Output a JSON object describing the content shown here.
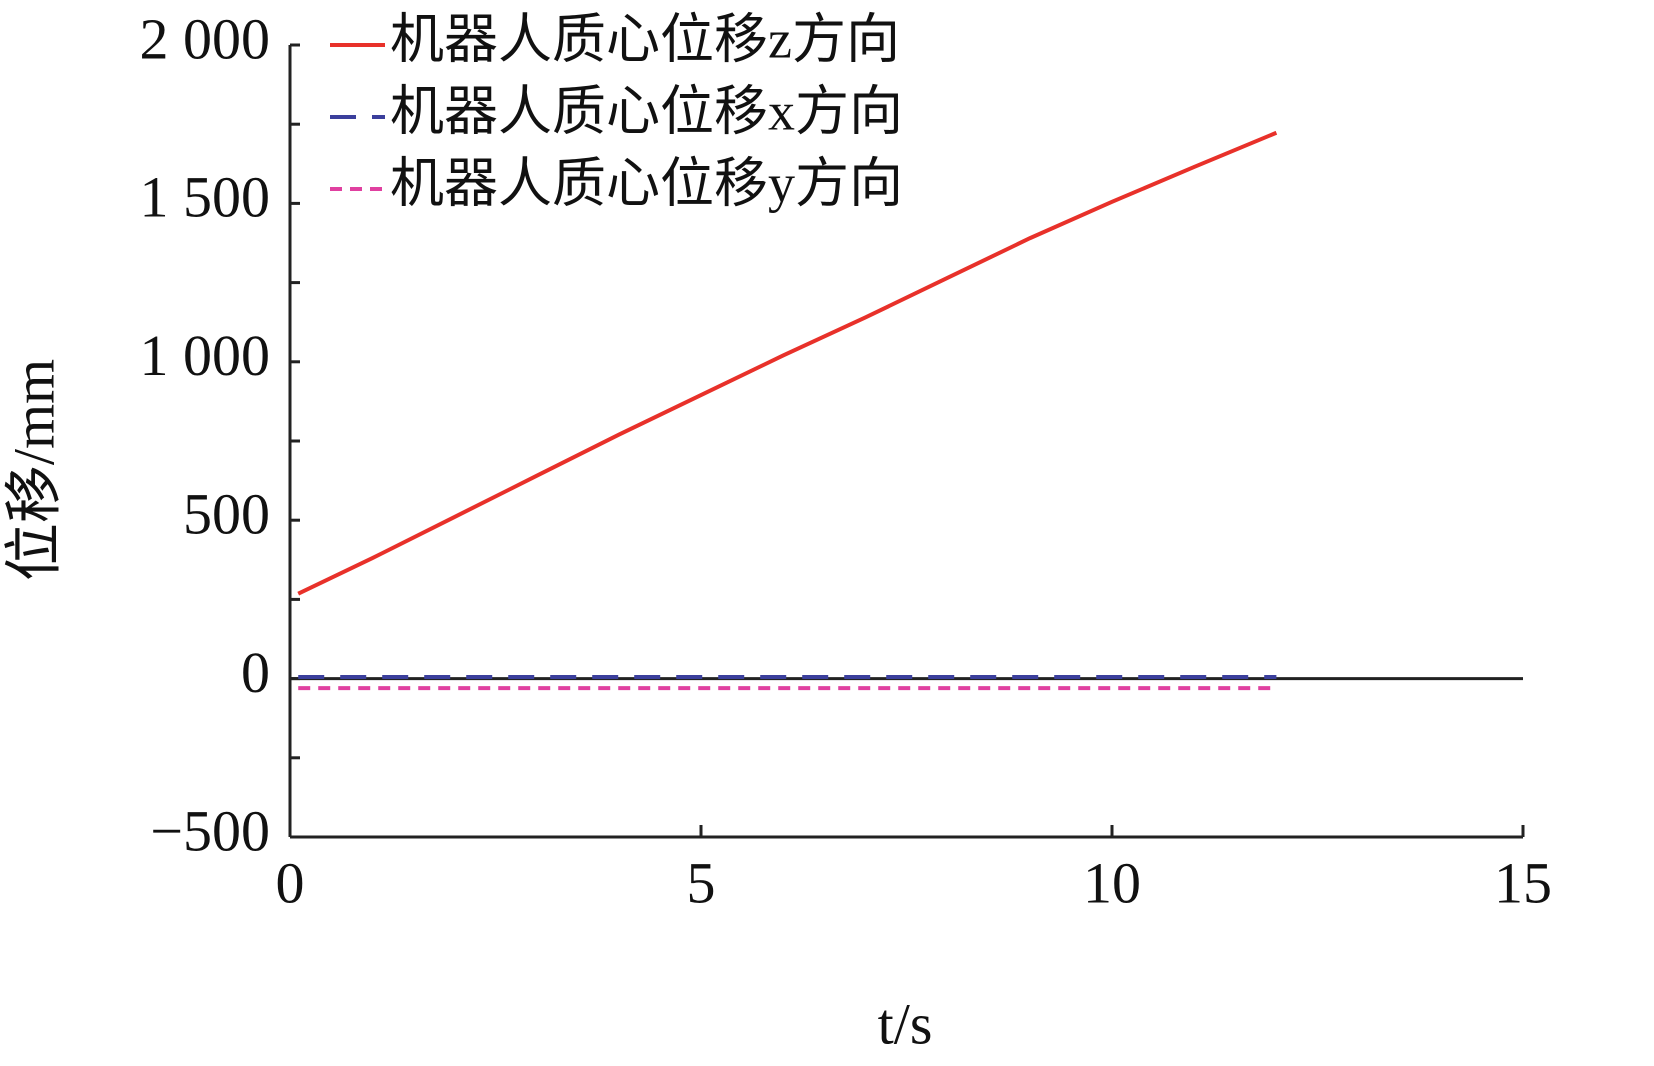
{
  "chart_data": {
    "type": "line",
    "xlabel": "t/s",
    "ylabel": "位移/mm",
    "x": [
      0.1,
      1,
      2,
      3,
      4,
      5,
      6,
      7,
      8,
      9,
      10,
      11,
      12
    ],
    "series": [
      {
        "name": "机器人质心位移z方向",
        "color": "#e8312a",
        "dash": "solid",
        "values": [
          268,
          380,
          510,
          640,
          770,
          895,
          1020,
          1140,
          1265,
          1390,
          1505,
          1615,
          1723
        ]
      },
      {
        "name": "机器人质心位移x方向",
        "color": "#3b3f9c",
        "dash": "dashed",
        "values": [
          5,
          5,
          5,
          5,
          5,
          5,
          5,
          5,
          5,
          5,
          5,
          5,
          5
        ]
      },
      {
        "name": "机器人质心位移y方向",
        "color": "#e040a0",
        "dash": "dotted",
        "values": [
          -30,
          -30,
          -30,
          -30,
          -30,
          -30,
          -30,
          -30,
          -30,
          -30,
          -30,
          -30,
          -30
        ]
      }
    ],
    "xlim": [
      0,
      15
    ],
    "xticks": [
      0,
      5,
      10,
      15
    ],
    "ylim": [
      -500,
      2000
    ],
    "yticks": [
      {
        "value": -500,
        "label": "−500"
      },
      0,
      500,
      {
        "value": 1000,
        "label": "1 000"
      },
      {
        "value": 1500,
        "label": "1 500"
      },
      {
        "value": 2000,
        "label": "2 000"
      }
    ],
    "yminorticks": [
      -250,
      250,
      750,
      1250,
      1750
    ],
    "legend": "upper left"
  }
}
